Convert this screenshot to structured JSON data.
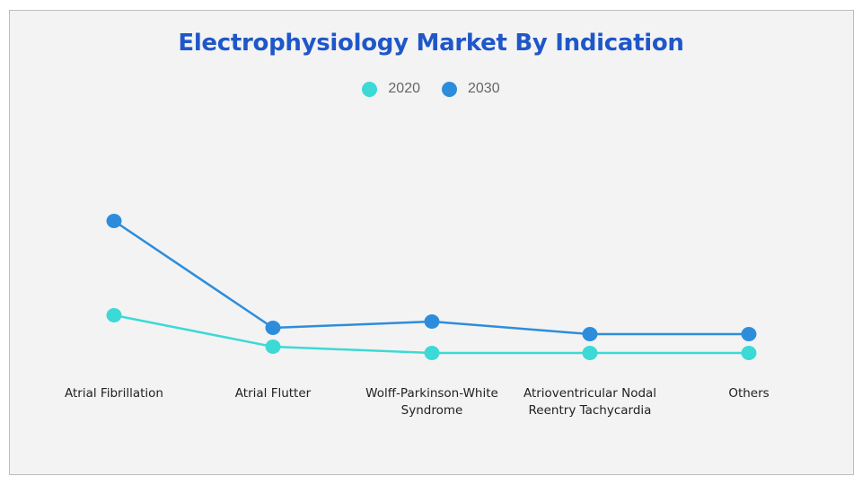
{
  "chart_data": {
    "type": "line",
    "title": "Electrophysiology Market By Indication",
    "xlabel": "",
    "ylabel": "",
    "categories": [
      "Atrial Fibrillation",
      "Atrial Flutter",
      "Wolff-Parkinson-White Syndrome",
      "Atrioventricular Nodal Reentry Tachycardia",
      "Others"
    ],
    "category_lines": [
      [
        "Atrial Fibrillation"
      ],
      [
        "Atrial Flutter"
      ],
      [
        "Wolff-Parkinson-White",
        "Syndrome"
      ],
      [
        "Atrioventricular Nodal",
        "Reentry Tachycardia"
      ],
      [
        "Others"
      ]
    ],
    "series": [
      {
        "name": "2020",
        "color": "#3dd9d6",
        "values": [
          69,
          34,
          27,
          27,
          27
        ]
      },
      {
        "name": "2030",
        "color": "#2e8ddb",
        "values": [
          174,
          55,
          62,
          48,
          48
        ]
      }
    ],
    "ylim": [
      0,
      200
    ],
    "grid": false,
    "y_axis_shown": false,
    "legend_position": "top-center"
  }
}
